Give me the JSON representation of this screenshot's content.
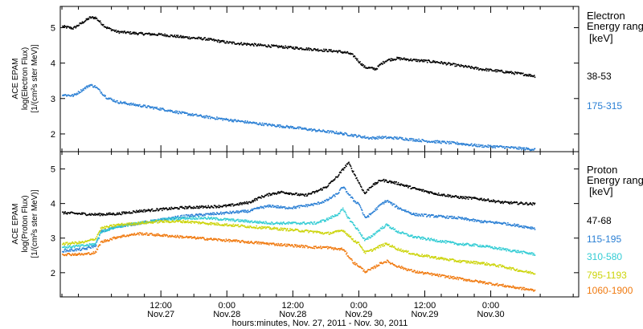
{
  "chart_data": {
    "type": "scatter",
    "xlabel": "hours:minutes, Nov. 27, 2011 - Nov. 30, 2011",
    "x_range_hours": [
      -6.3,
      88
    ],
    "x_ticks": [
      {
        "hours": 12,
        "time": "12:00",
        "date": "Nov.27"
      },
      {
        "hours": 24,
        "time": "0:00",
        "date": "Nov.28"
      },
      {
        "hours": 36,
        "time": "12:00",
        "date": "Nov.28"
      },
      {
        "hours": 48,
        "time": "0:00",
        "date": "Nov.29"
      },
      {
        "hours": 60,
        "time": "12:00",
        "date": "Nov.29"
      },
      {
        "hours": 72,
        "time": "0:00",
        "date": "Nov.30"
      }
    ],
    "panels": [
      {
        "id": "electron",
        "ylabel_lines": [
          "ACE EPAM",
          "log(Electron Flux)",
          "[1/(cm²s ster MeV)]"
        ],
        "ylim": [
          1.5,
          5.6
        ],
        "yticks": [
          2,
          3,
          4,
          5
        ],
        "legend_title_lines": [
          "Electron",
          "Energy ranges",
          "[keV]"
        ],
        "series": [
          {
            "name": "38-53",
            "color": "#000000",
            "points": [
              [
                -6,
                5.05
              ],
              [
                -4,
                5.0
              ],
              [
                -3,
                5.1
              ],
              [
                -2,
                5.2
              ],
              [
                -1,
                5.3
              ],
              [
                0,
                5.3
              ],
              [
                1,
                5.15
              ],
              [
                2,
                5.02
              ],
              [
                4,
                4.9
              ],
              [
                8,
                4.85
              ],
              [
                12,
                4.82
              ],
              [
                16,
                4.75
              ],
              [
                20,
                4.7
              ],
              [
                24,
                4.6
              ],
              [
                30,
                4.52
              ],
              [
                36,
                4.45
              ],
              [
                40,
                4.4
              ],
              [
                44,
                4.35
              ],
              [
                46,
                4.3
              ],
              [
                47,
                4.22
              ],
              [
                48,
                4.05
              ],
              [
                49,
                3.9
              ],
              [
                51,
                3.85
              ],
              [
                52,
                4.0
              ],
              [
                53,
                4.1
              ],
              [
                55,
                4.15
              ],
              [
                58,
                4.1
              ],
              [
                62,
                4.05
              ],
              [
                66,
                3.95
              ],
              [
                70,
                3.85
              ],
              [
                74,
                3.78
              ],
              [
                78,
                3.7
              ],
              [
                80,
                3.65
              ]
            ]
          },
          {
            "name": "175-315",
            "color": "#2a7fd4",
            "points": [
              [
                -6,
                3.12
              ],
              [
                -4,
                3.1
              ],
              [
                -3,
                3.2
              ],
              [
                -2,
                3.3
              ],
              [
                -1,
                3.4
              ],
              [
                0,
                3.35
              ],
              [
                1,
                3.2
              ],
              [
                2,
                3.05
              ],
              [
                4,
                2.92
              ],
              [
                8,
                2.82
              ],
              [
                12,
                2.72
              ],
              [
                16,
                2.6
              ],
              [
                20,
                2.5
              ],
              [
                24,
                2.42
              ],
              [
                30,
                2.3
              ],
              [
                36,
                2.2
              ],
              [
                40,
                2.12
              ],
              [
                44,
                2.05
              ],
              [
                46,
                2.0
              ],
              [
                48,
                1.95
              ],
              [
                50,
                1.9
              ],
              [
                52,
                1.92
              ],
              [
                55,
                1.9
              ],
              [
                60,
                1.82
              ],
              [
                66,
                1.75
              ],
              [
                70,
                1.68
              ],
              [
                74,
                1.65
              ],
              [
                78,
                1.6
              ],
              [
                80,
                1.58
              ]
            ]
          }
        ]
      },
      {
        "id": "proton",
        "ylabel_lines": [
          "ACE EPAM",
          "log(Proton Flux)",
          "[1/(cm²s ster MeV)]"
        ],
        "ylim": [
          1.3,
          5.5
        ],
        "yticks": [
          2,
          3,
          4,
          5
        ],
        "legend_title_lines": [
          "Proton",
          "Energy ranges",
          "[keV]"
        ],
        "series": [
          {
            "name": "47-68",
            "color": "#000000",
            "points": [
              [
                -6,
                3.75
              ],
              [
                0,
                3.7
              ],
              [
                4,
                3.72
              ],
              [
                8,
                3.8
              ],
              [
                12,
                3.85
              ],
              [
                16,
                3.9
              ],
              [
                20,
                3.92
              ],
              [
                24,
                3.95
              ],
              [
                28,
                4.05
              ],
              [
                30,
                4.2
              ],
              [
                32,
                4.3
              ],
              [
                34,
                4.35
              ],
              [
                36,
                4.3
              ],
              [
                38,
                4.25
              ],
              [
                40,
                4.35
              ],
              [
                42,
                4.5
              ],
              [
                44,
                4.8
              ],
              [
                45,
                5.0
              ],
              [
                46,
                5.2
              ],
              [
                47,
                4.9
              ],
              [
                48,
                4.6
              ],
              [
                49,
                4.3
              ],
              [
                50,
                4.5
              ],
              [
                52,
                4.7
              ],
              [
                55,
                4.6
              ],
              [
                58,
                4.45
              ],
              [
                62,
                4.3
              ],
              [
                66,
                4.2
              ],
              [
                70,
                4.15
              ],
              [
                74,
                4.05
              ],
              [
                78,
                4.02
              ],
              [
                80,
                4.0
              ]
            ]
          },
          {
            "name": "115-195",
            "color": "#2a7fd4",
            "points": [
              [
                -6,
                2.65
              ],
              [
                -2,
                2.7
              ],
              [
                0,
                2.8
              ],
              [
                1,
                3.2
              ],
              [
                4,
                3.35
              ],
              [
                8,
                3.45
              ],
              [
                12,
                3.55
              ],
              [
                16,
                3.65
              ],
              [
                20,
                3.7
              ],
              [
                24,
                3.75
              ],
              [
                28,
                3.8
              ],
              [
                30,
                3.9
              ],
              [
                32,
                3.95
              ],
              [
                34,
                3.9
              ],
              [
                36,
                3.9
              ],
              [
                38,
                3.95
              ],
              [
                40,
                4.0
              ],
              [
                42,
                4.1
              ],
              [
                44,
                4.3
              ],
              [
                45,
                4.5
              ],
              [
                46,
                4.3
              ],
              [
                47,
                4.1
              ],
              [
                48,
                4.0
              ],
              [
                49,
                3.6
              ],
              [
                50,
                3.7
              ],
              [
                52,
                4.0
              ],
              [
                53,
                4.1
              ],
              [
                55,
                3.9
              ],
              [
                58,
                3.7
              ],
              [
                62,
                3.65
              ],
              [
                66,
                3.6
              ],
              [
                70,
                3.5
              ],
              [
                74,
                3.45
              ],
              [
                78,
                3.35
              ],
              [
                80,
                3.3
              ]
            ]
          },
          {
            "name": "310-580",
            "color": "#33ccd4",
            "points": [
              [
                -6,
                2.75
              ],
              [
                -2,
                2.8
              ],
              [
                0,
                2.85
              ],
              [
                1,
                3.2
              ],
              [
                4,
                3.35
              ],
              [
                8,
                3.45
              ],
              [
                12,
                3.55
              ],
              [
                16,
                3.6
              ],
              [
                20,
                3.6
              ],
              [
                24,
                3.55
              ],
              [
                28,
                3.5
              ],
              [
                32,
                3.45
              ],
              [
                36,
                3.45
              ],
              [
                40,
                3.45
              ],
              [
                42,
                3.55
              ],
              [
                44,
                3.7
              ],
              [
                45,
                3.85
              ],
              [
                46,
                3.6
              ],
              [
                47,
                3.4
              ],
              [
                48,
                3.2
              ],
              [
                49,
                2.95
              ],
              [
                50,
                3.05
              ],
              [
                52,
                3.3
              ],
              [
                53,
                3.4
              ],
              [
                55,
                3.2
              ],
              [
                58,
                3.05
              ],
              [
                62,
                2.95
              ],
              [
                66,
                2.85
              ],
              [
                70,
                2.8
              ],
              [
                74,
                2.7
              ],
              [
                78,
                2.6
              ],
              [
                80,
                2.55
              ]
            ]
          },
          {
            "name": "795-1193",
            "color": "#ccd40a",
            "points": [
              [
                -6,
                2.85
              ],
              [
                -2,
                2.9
              ],
              [
                0,
                3.0
              ],
              [
                1,
                3.3
              ],
              [
                4,
                3.4
              ],
              [
                8,
                3.45
              ],
              [
                12,
                3.5
              ],
              [
                16,
                3.5
              ],
              [
                20,
                3.45
              ],
              [
                24,
                3.4
              ],
              [
                28,
                3.35
              ],
              [
                32,
                3.3
              ],
              [
                36,
                3.25
              ],
              [
                40,
                3.2
              ],
              [
                42,
                3.15
              ],
              [
                44,
                3.2
              ],
              [
                45,
                3.25
              ],
              [
                46,
                3.1
              ],
              [
                47,
                2.95
              ],
              [
                48,
                2.85
              ],
              [
                49,
                2.6
              ],
              [
                50,
                2.65
              ],
              [
                52,
                2.8
              ],
              [
                53,
                2.85
              ],
              [
                55,
                2.7
              ],
              [
                58,
                2.55
              ],
              [
                62,
                2.45
              ],
              [
                66,
                2.35
              ],
              [
                70,
                2.3
              ],
              [
                74,
                2.2
              ],
              [
                78,
                2.05
              ],
              [
                80,
                2.0
              ]
            ]
          },
          {
            "name": "1060-1900",
            "color": "#f07a10",
            "points": [
              [
                -6,
                2.55
              ],
              [
                -2,
                2.55
              ],
              [
                0,
                2.6
              ],
              [
                1,
                2.9
              ],
              [
                4,
                3.05
              ],
              [
                8,
                3.15
              ],
              [
                12,
                3.1
              ],
              [
                16,
                3.05
              ],
              [
                20,
                3.0
              ],
              [
                24,
                2.95
              ],
              [
                28,
                2.9
              ],
              [
                32,
                2.85
              ],
              [
                36,
                2.8
              ],
              [
                40,
                2.75
              ],
              [
                42,
                2.75
              ],
              [
                44,
                2.7
              ],
              [
                45,
                2.7
              ],
              [
                46,
                2.5
              ],
              [
                47,
                2.3
              ],
              [
                48,
                2.2
              ],
              [
                49,
                2.05
              ],
              [
                50,
                2.1
              ],
              [
                52,
                2.3
              ],
              [
                53,
                2.35
              ],
              [
                55,
                2.2
              ],
              [
                58,
                2.05
              ],
              [
                62,
                1.95
              ],
              [
                66,
                1.85
              ],
              [
                70,
                1.75
              ],
              [
                74,
                1.65
              ],
              [
                78,
                1.55
              ],
              [
                80,
                1.5
              ]
            ]
          }
        ]
      }
    ]
  }
}
